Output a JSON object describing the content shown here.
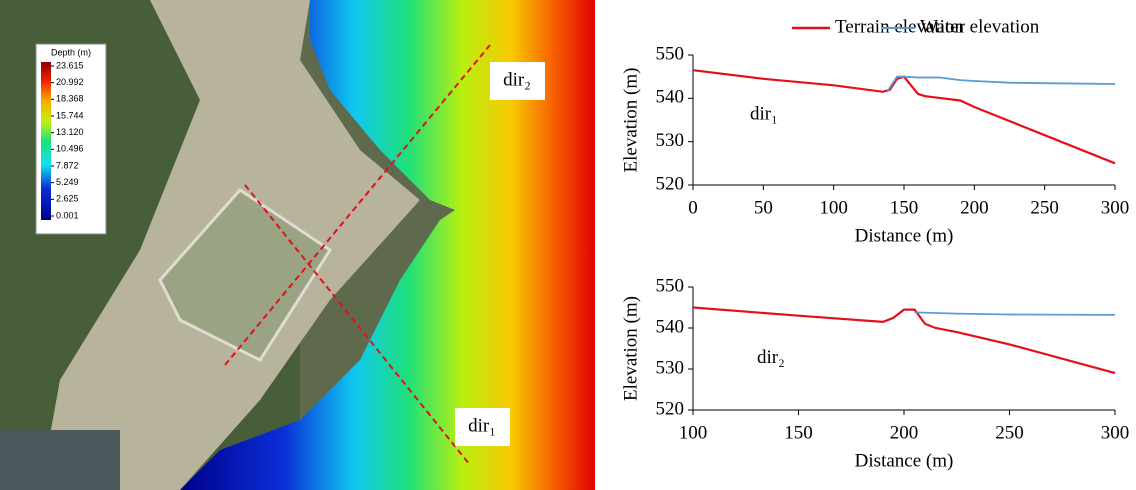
{
  "map": {
    "legend_title": "Depth (m)",
    "legend_ticks": [
      23.615,
      20.992,
      18.368,
      15.744,
      {
        "value": 13.12,
        "label": "13.120"
      },
      10.496,
      7.872,
      5.249,
      2.625,
      0.001
    ],
    "labels": [
      "dir₂",
      "dir₁"
    ]
  },
  "chart_data": [
    {
      "type": "line",
      "xlabel": "Distance (m)",
      "ylabel": "Elevation (m)",
      "annotation": "dir₁",
      "xlim": [
        0,
        300
      ],
      "xticks": [
        0,
        50,
        100,
        150,
        200,
        250,
        300
      ],
      "ylim": [
        520,
        550
      ],
      "yticks": [
        520,
        530,
        540,
        550
      ],
      "series": [
        {
          "name": "Terrain elevation",
          "color": "#e3101b",
          "x": [
            0,
            50,
            100,
            135,
            140,
            145,
            150,
            155,
            160,
            165,
            190,
            200,
            250,
            300
          ],
          "values": [
            546.5,
            544.5,
            543,
            541.5,
            542,
            544.5,
            545,
            543,
            541,
            540.5,
            539.5,
            538,
            531.5,
            525
          ]
        },
        {
          "name": "Water elevation",
          "color": "#5b9bd5",
          "x": [
            138,
            145,
            150,
            160,
            175,
            190,
            200,
            225,
            250,
            300
          ],
          "values": [
            541.5,
            545,
            545,
            544.8,
            544.8,
            544.2,
            544,
            543.6,
            543.5,
            543.3
          ]
        }
      ]
    },
    {
      "type": "line",
      "xlabel": "Distance (m)",
      "ylabel": "Elevation (m)",
      "annotation": "dir₂",
      "xlim": [
        100,
        300
      ],
      "xticks": [
        100,
        150,
        200,
        250,
        300
      ],
      "ylim": [
        520,
        550
      ],
      "yticks": [
        520,
        530,
        540,
        550
      ],
      "series": [
        {
          "color": "#e3101b",
          "x": [
            100,
            150,
            190,
            195,
            200,
            205,
            210,
            215,
            225,
            250,
            300
          ],
          "values": [
            545,
            543,
            541.5,
            542.5,
            544.5,
            544.5,
            541,
            540,
            539,
            536,
            529
          ]
        },
        {
          "color": "#5b9bd5",
          "x": [
            205,
            225,
            250,
            300
          ],
          "values": [
            543.8,
            543.5,
            543.3,
            543.2
          ]
        }
      ]
    }
  ]
}
